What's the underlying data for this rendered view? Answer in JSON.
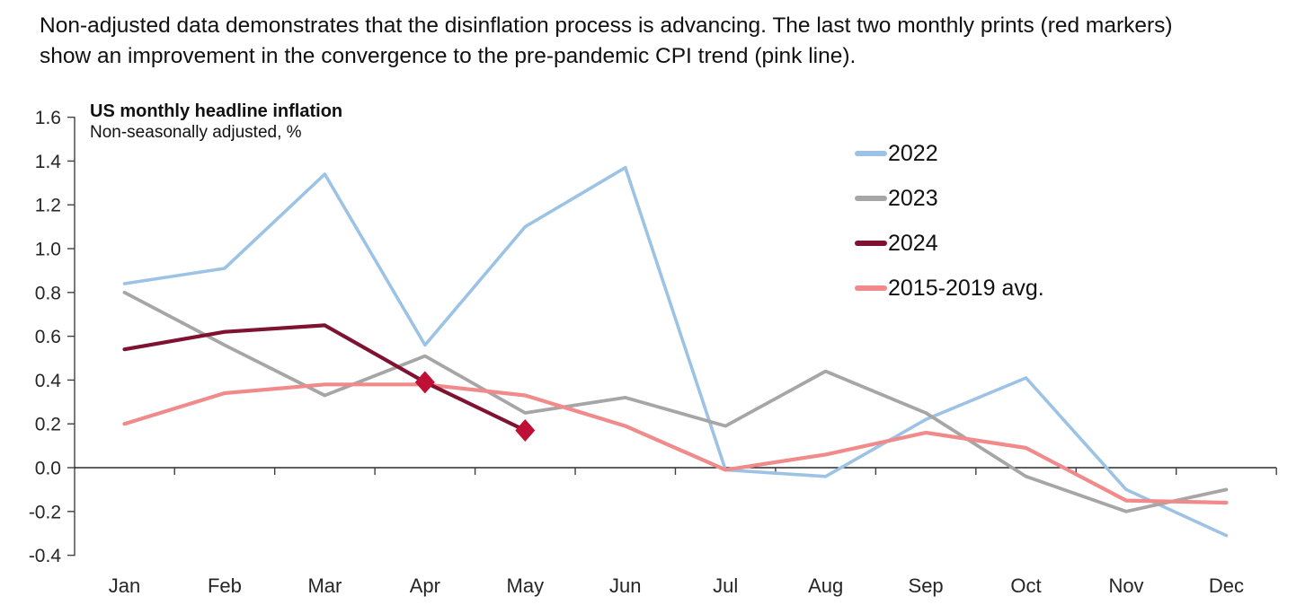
{
  "header": {
    "lines": [
      "Non-adjusted data demonstrates that the disinflation process is advancing. The last two monthly prints (red markers)",
      "show an improvement in the convergence to the pre-pandemic CPI trend (pink line)."
    ]
  },
  "chart_data": {
    "type": "line",
    "title": "US monthly headline inflation",
    "subtitle": "Non-seasonally adjusted, %",
    "categories": [
      "Jan",
      "Feb",
      "Mar",
      "Apr",
      "May",
      "Jun",
      "Jul",
      "Aug",
      "Sep",
      "Oct",
      "Nov",
      "Dec"
    ],
    "y_axis": {
      "min": -0.4,
      "max": 1.6,
      "step": 0.2,
      "tick_labels": [
        "1.6",
        "1.4",
        "1.2",
        "1.0",
        "0.8",
        "0.6",
        "0.4",
        "0.2",
        "0.0",
        "-0.2",
        "-0.4"
      ],
      "zero_line": true,
      "grid": false
    },
    "series": [
      {
        "name": "2022",
        "color": "#9CC3E5",
        "line_width": 3.6,
        "values": [
          0.84,
          0.91,
          1.34,
          0.56,
          1.1,
          1.37,
          -0.01,
          -0.04,
          0.22,
          0.41,
          -0.1,
          -0.31
        ]
      },
      {
        "name": "2023",
        "color": "#A6A6A6",
        "line_width": 3.8,
        "values": [
          0.8,
          0.56,
          0.33,
          0.51,
          0.25,
          0.32,
          0.19,
          0.44,
          0.25,
          -0.04,
          -0.2,
          -0.1
        ]
      },
      {
        "name": "2024",
        "color": "#7E1230",
        "line_width": 4.2,
        "values": [
          0.54,
          0.62,
          0.65,
          0.39,
          0.17
        ],
        "marker": {
          "shape": "diamond",
          "color": "#C00F35",
          "indices": [
            3,
            4
          ],
          "note": "red markers on last two monthly prints (Apr, May)"
        }
      },
      {
        "name": "2015-2019 avg.",
        "color": "#F18A8A",
        "line_width": 4.2,
        "values": [
          0.2,
          0.34,
          0.38,
          0.38,
          0.33,
          0.19,
          -0.01,
          0.06,
          0.16,
          0.09,
          -0.15,
          -0.16
        ]
      }
    ],
    "legend": {
      "position": "top-right",
      "entries": [
        "2022",
        "2023",
        "2024",
        "2015-2019 avg."
      ]
    }
  }
}
